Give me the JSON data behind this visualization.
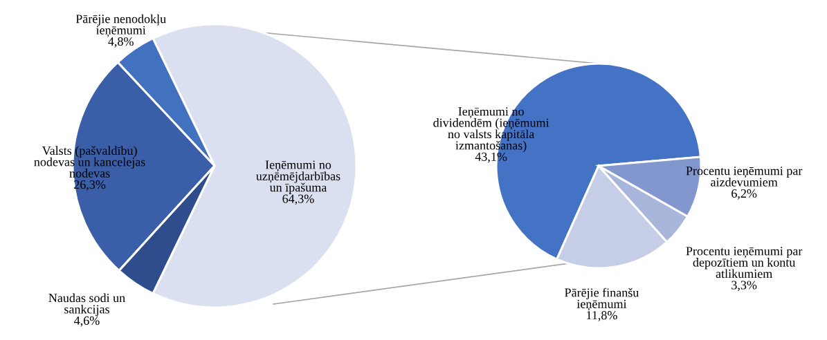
{
  "chart_data": [
    {
      "type": "pie",
      "categories": [
        "Ieņēmumi no\nuzņēmējdarbības\nun īpašuma",
        "Pārējie nenodokļu\nieņēmumi",
        "Valsts (pašvaldību)\nnodevas un kancelejas\nnodevas",
        "Naudas sodi un\nsankcijas"
      ],
      "values": [
        64.3,
        4.8,
        26.3,
        4.6
      ],
      "colors": [
        "#dae0f0",
        "#4271c0",
        "#3a5fa8",
        "#2f4d8c"
      ],
      "value_labels": [
        "64,3%",
        "4,8%",
        "26,3%",
        "4,6%"
      ]
    },
    {
      "type": "pie",
      "categories": [
        "Ieņēmumi no\ndividendēm (ieņēmumi\nno valsts kapitāla\nizmantošanas)",
        "Pārējie finanšu\nieņēmumi",
        "Procentu ieņēmumi par\ndepozītiem un kontu\natlikumiem",
        "Procentu ieņēmumi par\naizdevumiem"
      ],
      "values": [
        43.1,
        11.8,
        3.3,
        6.2
      ],
      "colors": [
        "#4472c4",
        "#c5cee6",
        "#a9b6dc",
        "#8397cf"
      ],
      "value_labels": [
        "43,1%",
        "11,8%",
        "3,3%",
        "6,2%"
      ]
    }
  ]
}
